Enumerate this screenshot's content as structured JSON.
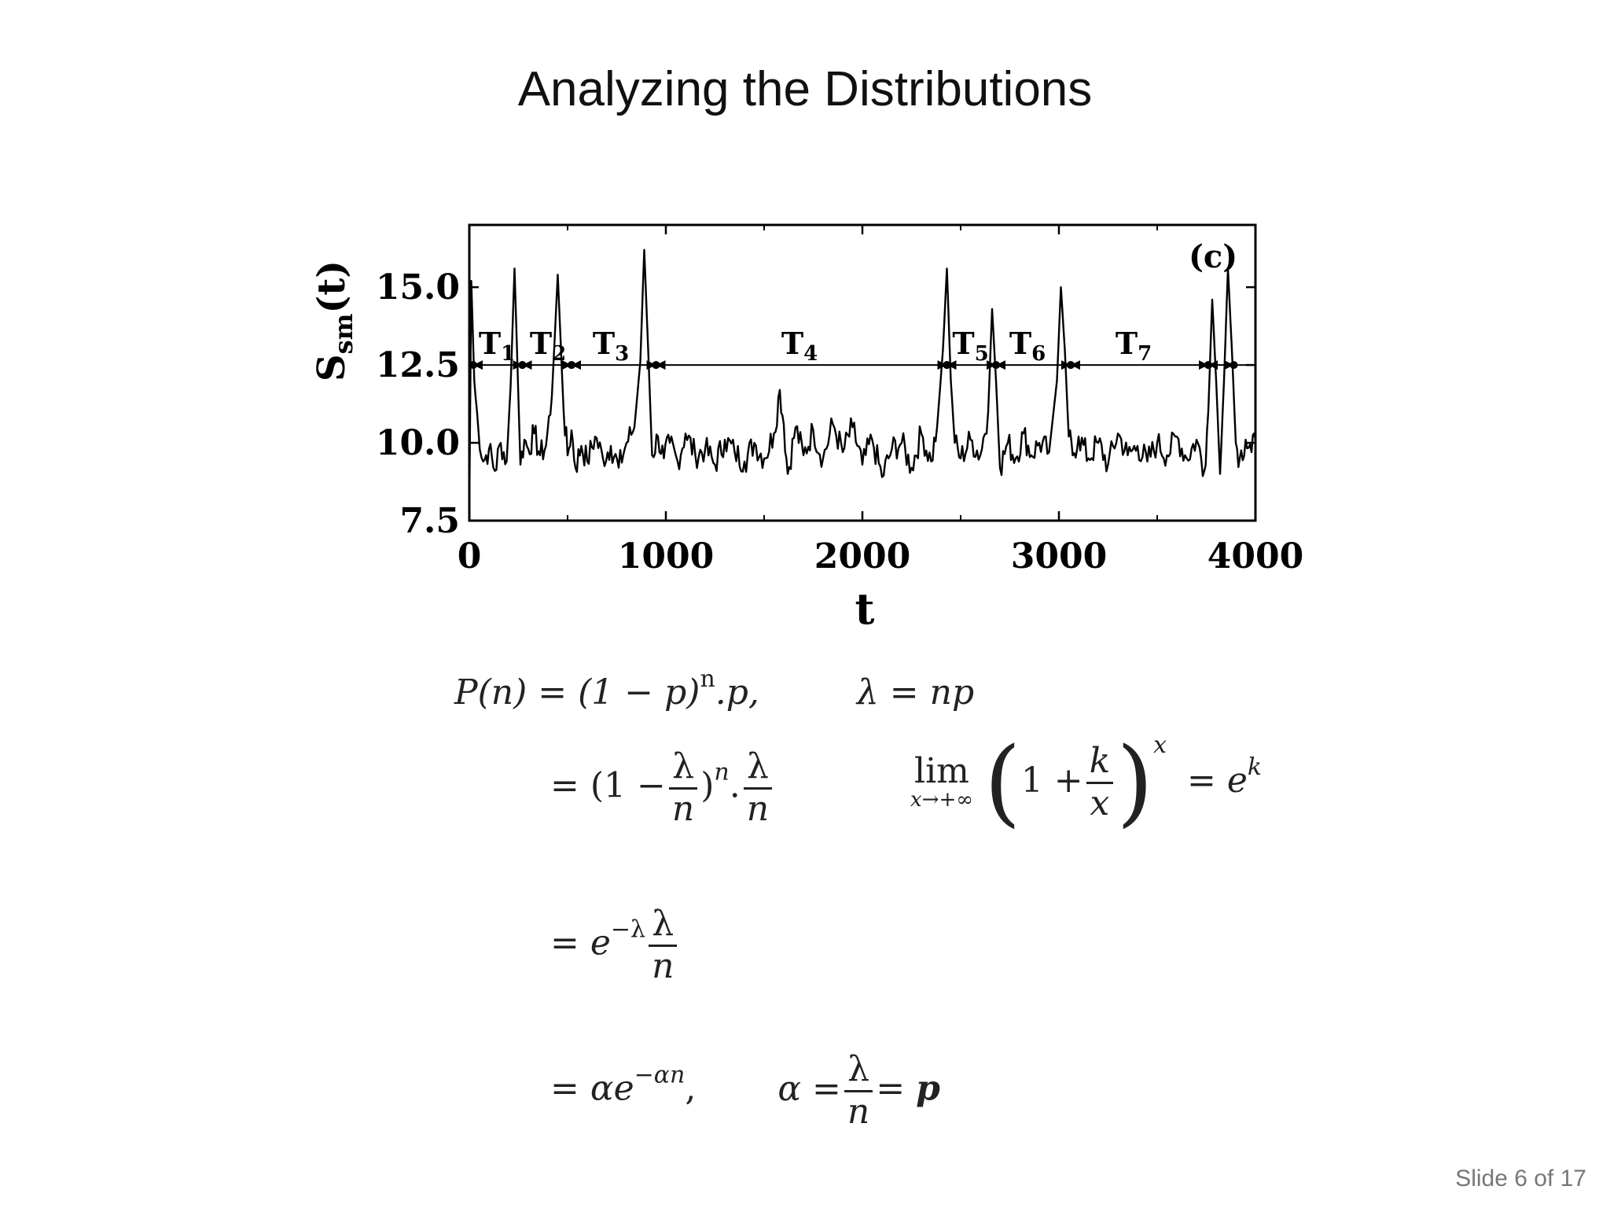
{
  "slide": {
    "title": "Analyzing the Distributions",
    "number": "Slide 6 of 17"
  },
  "chart_data": {
    "type": "line",
    "panel_label": "(c)",
    "ylabel": "S_sm(t)",
    "ylabel_main": "S",
    "ylabel_sub": "sm",
    "ylabel_tail": "(t)",
    "xlabel": "t",
    "xlim": [
      0,
      4000
    ],
    "ylim": [
      7.5,
      17.0
    ],
    "xticks": [
      "0",
      "1000",
      "2000",
      "3000",
      "4000"
    ],
    "yticks": [
      "7.5",
      "10.0",
      "12.5",
      "15.0"
    ],
    "threshold": 12.5,
    "series": [
      {
        "x": [
          0,
          10,
          25,
          45,
          70,
          100,
          130,
          160,
          190,
          210,
          230,
          260,
          280,
          300,
          330,
          360,
          390,
          420,
          450,
          480,
          500,
          520,
          540,
          570,
          600,
          640,
          680,
          720,
          760,
          800,
          840,
          870,
          890,
          910,
          930,
          960,
          990,
          1020,
          1060,
          1100,
          1150,
          1200,
          1250,
          1300,
          1350,
          1400,
          1450,
          1500,
          1550,
          1580,
          1600,
          1620,
          1660,
          1700,
          1750,
          1800,
          1850,
          1900,
          1950,
          2000,
          2050,
          2100,
          2150,
          2200,
          2250,
          2300,
          2350,
          2380,
          2410,
          2430,
          2450,
          2470,
          2500,
          2550,
          2600,
          2640,
          2660,
          2680,
          2700,
          2740,
          2780,
          2820,
          2860,
          2900,
          2950,
          2990,
          3010,
          3030,
          3050,
          3070,
          3100,
          3150,
          3200,
          3250,
          3300,
          3350,
          3400,
          3450,
          3500,
          3550,
          3600,
          3650,
          3700,
          3740,
          3760,
          3780,
          3800,
          3820,
          3840,
          3860,
          3880,
          3900,
          3920,
          3950,
          3980,
          4000
        ],
        "values": [
          7.9,
          15.2,
          12.0,
          10.5,
          9.4,
          9.8,
          9.1,
          10.0,
          9.4,
          11.8,
          15.6,
          9.3,
          10.1,
          9.8,
          10.3,
          9.6,
          9.9,
          11.5,
          15.4,
          11.0,
          9.6,
          10.4,
          9.2,
          9.9,
          9.4,
          10.2,
          9.5,
          9.9,
          9.2,
          10.0,
          10.5,
          12.6,
          16.2,
          13.0,
          9.6,
          10.2,
          9.5,
          10.0,
          9.4,
          10.3,
          9.6,
          9.8,
          9.3,
          10.1,
          9.7,
          9.4,
          10.0,
          9.5,
          10.3,
          11.7,
          10.6,
          9.0,
          10.5,
          9.6,
          10.4,
          9.5,
          10.6,
          9.7,
          10.5,
          9.3,
          10.1,
          8.9,
          9.8,
          10.0,
          9.2,
          10.3,
          9.4,
          10.5,
          13.0,
          15.6,
          12.0,
          10.0,
          9.5,
          10.1,
          9.6,
          11.0,
          14.3,
          12.0,
          9.2,
          10.0,
          9.5,
          10.3,
          9.6,
          10.0,
          9.7,
          12.0,
          15.0,
          13.0,
          10.2,
          9.6,
          10.2,
          9.5,
          10.0,
          9.3,
          10.3,
          9.6,
          9.9,
          9.4,
          10.0,
          9.6,
          10.2,
          9.5,
          10.1,
          9.1,
          11.0,
          14.6,
          12.0,
          9.0,
          12.0,
          15.6,
          13.0,
          10.0,
          9.5,
          10.1,
          9.7,
          10.1
        ]
      }
    ],
    "intervals": [
      {
        "label": "T",
        "sub": "1",
        "x0": 20,
        "x1": 270,
        "label_x": 140
      },
      {
        "label": "T",
        "sub": "2",
        "x0": 270,
        "x1": 520,
        "label_x": 400
      },
      {
        "label": "T",
        "sub": "3",
        "x0": 520,
        "x1": 950,
        "label_x": 720
      },
      {
        "label": "T",
        "sub": "4",
        "x0": 950,
        "x1": 2430,
        "label_x": 1680
      },
      {
        "label": "T",
        "sub": "5",
        "x0": 2430,
        "x1": 2680,
        "label_x": 2550
      },
      {
        "label": "T",
        "sub": "6",
        "x0": 2680,
        "x1": 3060,
        "label_x": 2840
      },
      {
        "label": "T",
        "sub": "7",
        "x0": 3060,
        "x1": 3760,
        "label_x": 3380
      },
      {
        "label": "",
        "sub": "",
        "x0": 3760,
        "x1": 3890,
        "label_x": 3825
      }
    ]
  },
  "equations": {
    "line1": {
      "lhs": "P(n) = (1 − p)",
      "lhs_sup": "n",
      "lhs_tail": ".p,",
      "rhs": "λ = np"
    },
    "line2": {
      "eq": "= (1 −",
      "frac1_num": "λ",
      "frac1_den": "n",
      "mid": ")",
      "mid_sup": "n",
      "dot": ".",
      "frac2_num": "λ",
      "frac2_den": "n",
      "lim_word": "lim",
      "lim_sub": "x→+∞",
      "lim_paren_open": "(",
      "lim_body": "1 +",
      "lim_frac_num": "k",
      "lim_frac_den": "x",
      "lim_paren_close": ")",
      "lim_sup": "x",
      "lim_rhs": "= e",
      "lim_rhs_sup": "k"
    },
    "line3": {
      "eq": "= e",
      "sup": "−λ",
      "frac_num": "λ",
      "frac_den": "n"
    },
    "line4": {
      "eq": "= αe",
      "sup": "−αn",
      "comma": ",",
      "alpha": "α =",
      "frac_num": "λ",
      "frac_den": "n",
      "tail": "=",
      "bold_p": "p"
    }
  }
}
